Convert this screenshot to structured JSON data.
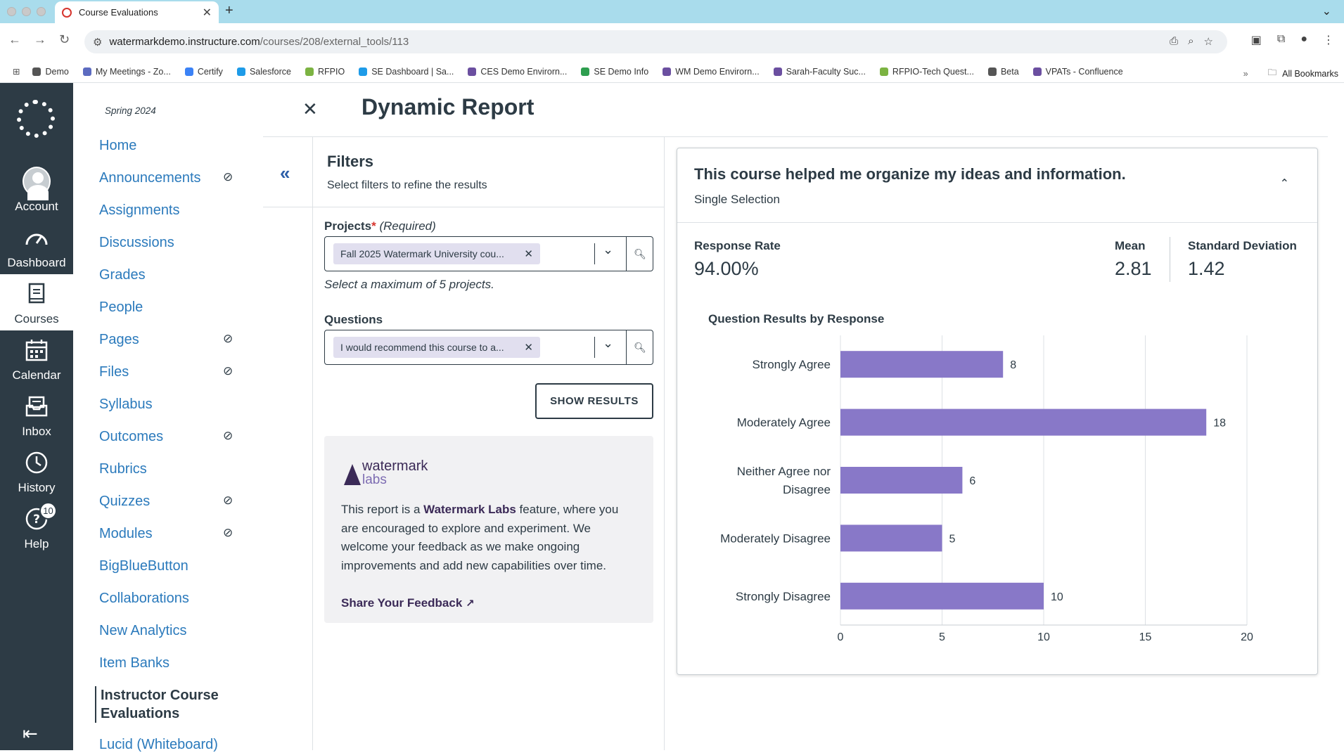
{
  "browser": {
    "tab_title": "Course Evaluations",
    "url_host": "watermarkdemo.instructure.com",
    "url_path": "/courses/208/external_tools/113",
    "bookmarks": [
      {
        "label": "Demo",
        "color": "#555555"
      },
      {
        "label": "My Meetings - Zo...",
        "color": "#5c6bc0"
      },
      {
        "label": "Certify",
        "color": "#3b82f6"
      },
      {
        "label": "Salesforce",
        "color": "#1e9be8"
      },
      {
        "label": "RFPIO",
        "color": "#7cb342"
      },
      {
        "label": "SE Dashboard | Sa...",
        "color": "#1e9be8"
      },
      {
        "label": "CES Demo Envirorn...",
        "color": "#6b4fa0"
      },
      {
        "label": "SE Demo Info",
        "color": "#2e9e4f"
      },
      {
        "label": "WM Demo Envirorn...",
        "color": "#6b4fa0"
      },
      {
        "label": "Sarah-Faculty Suc...",
        "color": "#6b4fa0"
      },
      {
        "label": "RFPIO-Tech Quest...",
        "color": "#7cb342"
      },
      {
        "label": "Beta",
        "color": "#555555"
      },
      {
        "label": "VPATs - Confluence",
        "color": "#6b4fa0"
      }
    ],
    "all_bookmarks": "All Bookmarks"
  },
  "global_nav": {
    "items": [
      {
        "label": "Account",
        "icon": "avatar-icon"
      },
      {
        "label": "Dashboard",
        "icon": "dashboard-icon"
      },
      {
        "label": "Courses",
        "icon": "courses-icon"
      },
      {
        "label": "Calendar",
        "icon": "calendar-icon"
      },
      {
        "label": "Inbox",
        "icon": "inbox-icon"
      },
      {
        "label": "History",
        "icon": "clock-icon"
      },
      {
        "label": "Help",
        "icon": "help-icon"
      }
    ],
    "help_badge": "10"
  },
  "course_nav": {
    "term": "Spring 2024",
    "items": [
      {
        "label": "Home",
        "hidden": false
      },
      {
        "label": "Announcements",
        "hidden": true
      },
      {
        "label": "Assignments",
        "hidden": false
      },
      {
        "label": "Discussions",
        "hidden": false
      },
      {
        "label": "Grades",
        "hidden": false
      },
      {
        "label": "People",
        "hidden": false
      },
      {
        "label": "Pages",
        "hidden": true
      },
      {
        "label": "Files",
        "hidden": true
      },
      {
        "label": "Syllabus",
        "hidden": false
      },
      {
        "label": "Outcomes",
        "hidden": true
      },
      {
        "label": "Rubrics",
        "hidden": false
      },
      {
        "label": "Quizzes",
        "hidden": true
      },
      {
        "label": "Modules",
        "hidden": true
      },
      {
        "label": "BigBlueButton",
        "hidden": false
      },
      {
        "label": "Collaborations",
        "hidden": false
      },
      {
        "label": "New Analytics",
        "hidden": false
      },
      {
        "label": "Item Banks",
        "hidden": false
      }
    ],
    "current_line1": "Instructor Course",
    "current_line2": "Evaluations",
    "partial_item": "Lucid (Whiteboard)"
  },
  "page": {
    "title": "Dynamic Report"
  },
  "filters": {
    "title": "Filters",
    "subtitle": "Select filters to refine the results",
    "projects_label": "Projects",
    "required_star": "*",
    "required_text": "(Required)",
    "projects_chip": "Fall 2025 Watermark University cou...",
    "projects_hint": "Select a maximum of 5 projects.",
    "questions_label": "Questions",
    "questions_chip": "I would recommend this course to a...",
    "show_results": "SHOW RESULTS",
    "labs": {
      "logo_word1": "watermark",
      "logo_word2": "labs",
      "text_before": "This report is a ",
      "text_bold": "Watermark Labs",
      "text_after": " feature, where you are encouraged to explore and experiment. We welcome your feedback as we make ongoing improvements and add new capabilities over time.",
      "feedback_link": "Share Your Feedback"
    }
  },
  "result": {
    "question": "This course helped me organize my ideas and information.",
    "type": "Single Selection",
    "response_rate_label": "Response Rate",
    "response_rate": "94.00%",
    "mean_label": "Mean",
    "mean": "2.81",
    "sd_label": "Standard Deviation",
    "sd": "1.42"
  },
  "chart_data": {
    "type": "bar",
    "orientation": "horizontal",
    "title": "Question Results by Response",
    "categories": [
      "Strongly Agree",
      "Moderately Agree",
      "Neither Agree nor Disagree",
      "Moderately Disagree",
      "Strongly Disagree"
    ],
    "category_lines": [
      [
        "Strongly Agree"
      ],
      [
        "Moderately Agree"
      ],
      [
        "Neither Agree nor",
        "Disagree"
      ],
      [
        "Moderately Disagree"
      ],
      [
        "Strongly Disagree"
      ]
    ],
    "values": [
      8,
      18,
      6,
      5,
      10
    ],
    "xlim": [
      0,
      20
    ],
    "xticks": [
      0,
      5,
      10,
      15,
      20
    ],
    "bar_color": "#8878c8",
    "grid": true
  }
}
